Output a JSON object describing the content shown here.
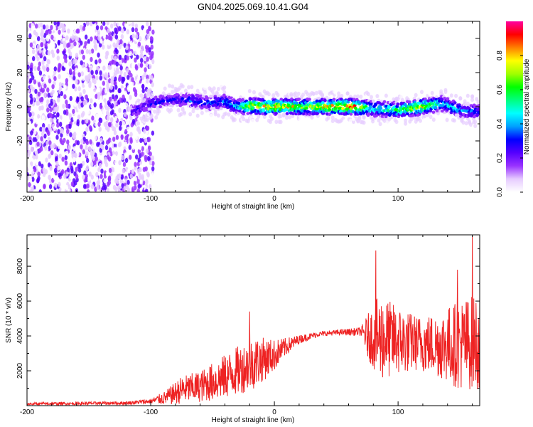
{
  "title": "GN04.2025.069.10.41.G04",
  "chart_data": [
    {
      "type": "heatmap",
      "xlabel": "Height of straight line (km)",
      "ylabel": "Frequency (Hz)",
      "xlim": [
        -200,
        166
      ],
      "ylim": [
        -50,
        50
      ],
      "x_ticks": [
        "-200",
        "-100",
        "0",
        "100"
      ],
      "y_ticks": [
        "40",
        "20",
        "0",
        "-20",
        "-40"
      ],
      "colorbar": {
        "label": "Normalized spectral amplitude",
        "range": [
          0,
          1
        ],
        "ticks": [
          "0.0",
          "0.2",
          "0.4",
          "0.6",
          "0.8"
        ],
        "colors": [
          "#ffffff",
          "#e6ccff",
          "#9933ff",
          "#5500ff",
          "#0000ff",
          "#00a0ff",
          "#00ffff",
          "#00ff80",
          "#00ff00",
          "#a0ff00",
          "#ffff00",
          "#ff8000",
          "#ff0000",
          "#ff00a0"
        ]
      },
      "ridge": [
        {
          "x": -115,
          "f": -3,
          "amp": 0.3
        },
        {
          "x": -100,
          "f": 2,
          "amp": 0.35
        },
        {
          "x": -85,
          "f": 4,
          "amp": 0.35
        },
        {
          "x": -70,
          "f": 4,
          "amp": 0.38
        },
        {
          "x": -55,
          "f": 2,
          "amp": 0.4
        },
        {
          "x": -40,
          "f": 3,
          "amp": 0.45
        },
        {
          "x": -30,
          "f": 0,
          "amp": 0.5
        },
        {
          "x": -20,
          "f": 0.5,
          "amp": 0.8
        },
        {
          "x": -5,
          "f": 0,
          "amp": 0.85
        },
        {
          "x": 10,
          "f": 0,
          "amp": 0.85
        },
        {
          "x": 30,
          "f": 0,
          "amp": 0.75
        },
        {
          "x": 50,
          "f": 0,
          "amp": 0.9
        },
        {
          "x": 65,
          "f": 0,
          "amp": 0.95
        },
        {
          "x": 80,
          "f": -1,
          "amp": 0.55
        },
        {
          "x": 100,
          "f": -2,
          "amp": 0.65
        },
        {
          "x": 120,
          "f": 0,
          "amp": 0.8
        },
        {
          "x": 135,
          "f": 2,
          "amp": 0.55
        },
        {
          "x": 150,
          "f": -2,
          "amp": 0.45
        },
        {
          "x": 166,
          "f": -3,
          "amp": 0.4
        }
      ]
    },
    {
      "type": "line",
      "xlabel": "Height of straight line (km)",
      "ylabel": "SNR (10 * v/v)",
      "xlim": [
        -200,
        166
      ],
      "ylim": [
        0,
        9800
      ],
      "x_ticks": [
        "-200",
        "-100",
        "0",
        "100"
      ],
      "y_ticks": [
        "8000",
        "6000",
        "4000",
        "2000"
      ],
      "color": "#ee2222",
      "trend": [
        {
          "x": -200,
          "y": 100,
          "amp": 80
        },
        {
          "x": -120,
          "y": 150,
          "amp": 100
        },
        {
          "x": -100,
          "y": 250,
          "amp": 150
        },
        {
          "x": -88,
          "y": 450,
          "amp": 400
        },
        {
          "x": -75,
          "y": 900,
          "amp": 800
        },
        {
          "x": -60,
          "y": 1100,
          "amp": 900
        },
        {
          "x": -45,
          "y": 1500,
          "amp": 1200
        },
        {
          "x": -30,
          "y": 2000,
          "amp": 1400
        },
        {
          "x": -15,
          "y": 2500,
          "amp": 1500
        },
        {
          "x": 0,
          "y": 2900,
          "amp": 900
        },
        {
          "x": 10,
          "y": 3400,
          "amp": 500
        },
        {
          "x": 20,
          "y": 3800,
          "amp": 250
        },
        {
          "x": 35,
          "y": 4100,
          "amp": 150
        },
        {
          "x": 50,
          "y": 4200,
          "amp": 150
        },
        {
          "x": 70,
          "y": 4250,
          "amp": 250
        },
        {
          "x": 75,
          "y": 4000,
          "amp": 1200
        },
        {
          "x": 85,
          "y": 3900,
          "amp": 2500
        },
        {
          "x": 100,
          "y": 3700,
          "amp": 2000
        },
        {
          "x": 115,
          "y": 3600,
          "amp": 1600
        },
        {
          "x": 130,
          "y": 3500,
          "amp": 1800
        },
        {
          "x": 150,
          "y": 3500,
          "amp": 2600
        },
        {
          "x": 166,
          "y": 3700,
          "amp": 2800
        }
      ],
      "peaks": [
        {
          "x": -20,
          "y": 5400
        },
        {
          "x": 82,
          "y": 8900
        },
        {
          "x": 160,
          "y": 9800
        },
        {
          "x": 148,
          "y": 7800
        }
      ]
    }
  ]
}
